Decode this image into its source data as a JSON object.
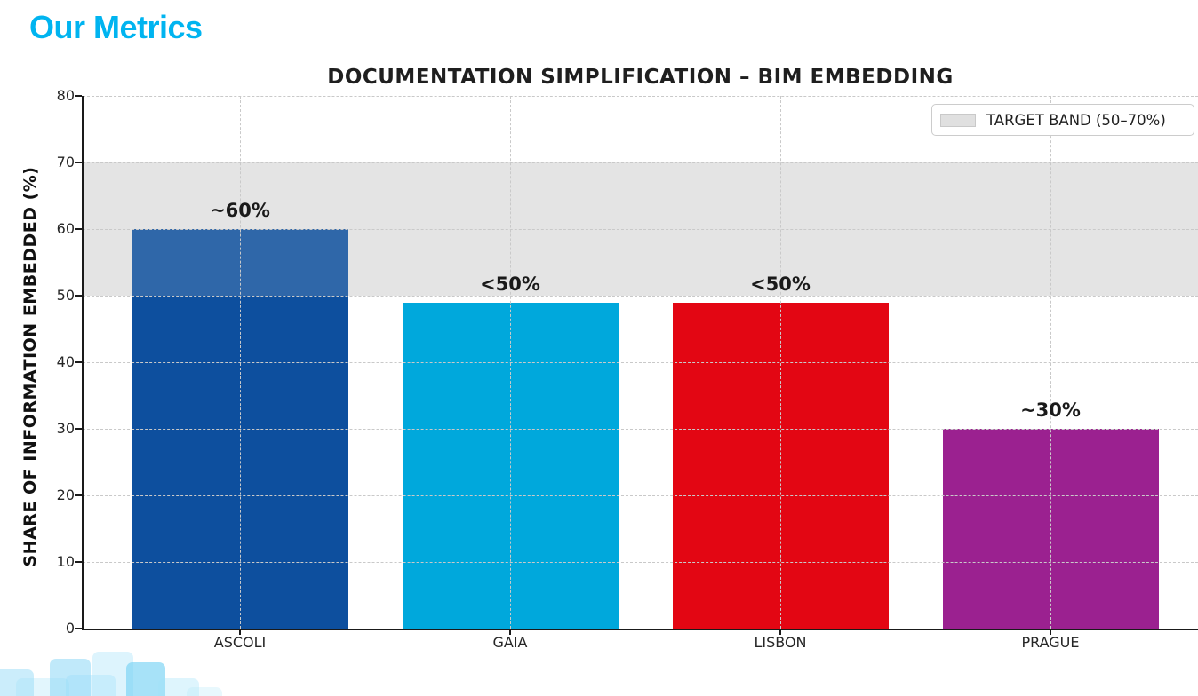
{
  "page": {
    "heading": "Our Metrics",
    "heading_color": "#00b4f0"
  },
  "chart_data": {
    "type": "bar",
    "title": "DOCUMENTATION SIMPLIFICATION – BIM EMBEDDING",
    "ylabel": "SHARE OF INFORMATION EMBEDDED (%)",
    "xlabel": "",
    "ylim": [
      0,
      80
    ],
    "yticks": [
      0,
      10,
      20,
      30,
      40,
      50,
      60,
      70,
      80
    ],
    "grid": "dashed, horizontal and vertical",
    "legend_position": "upper right",
    "legend": {
      "label": "TARGET BAND (50–70%)",
      "swatch_color": "#e0e0e0"
    },
    "target_band": {
      "from": 50,
      "to": 70,
      "color": "#e4e4e4"
    },
    "categories": [
      "ASCOLI",
      "GAIA",
      "LISBON",
      "PRAGUE"
    ],
    "values": [
      60,
      49,
      49,
      30
    ],
    "bar_labels": [
      "~60%",
      "<50%",
      "<50%",
      "~30%"
    ],
    "bar_colors": [
      "#0d4f9e",
      "#00a8dc",
      "#e30613",
      "#9b2190"
    ],
    "axis_color": "#1a1a1a"
  }
}
